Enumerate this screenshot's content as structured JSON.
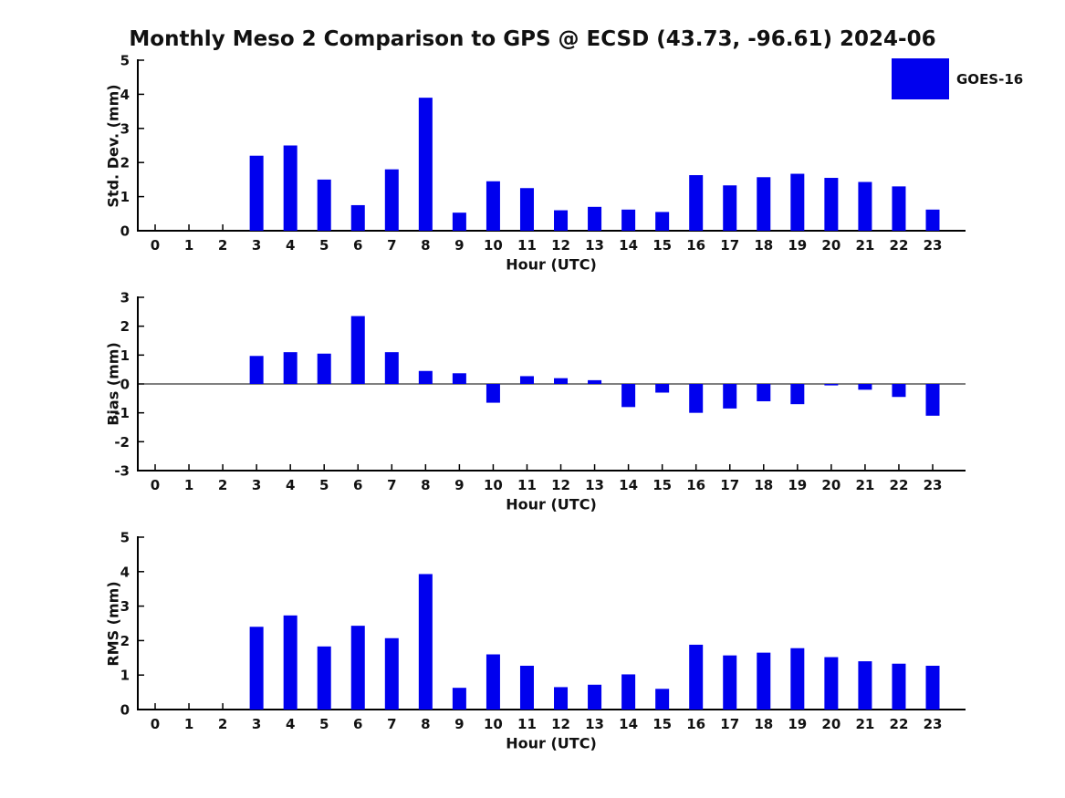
{
  "page": {
    "title": "Monthly Meso 2 Comparison to GPS @ ECSD (43.73, -96.61) 2024-06"
  },
  "legend": {
    "label": "GOES-16",
    "color": "#0000ee",
    "position": "top-right"
  },
  "colors": {
    "bar": "#0000ee",
    "axis": "#000000",
    "text": "#111111"
  },
  "chart_data": [
    {
      "type": "bar",
      "series_name": "GOES-16",
      "ylabel": "Std. Dev. (mm)",
      "xlabel": "Hour (UTC)",
      "categories": [
        0,
        1,
        2,
        3,
        4,
        5,
        6,
        7,
        8,
        9,
        10,
        11,
        12,
        13,
        14,
        15,
        16,
        17,
        18,
        19,
        20,
        21,
        22,
        23
      ],
      "values": [
        0,
        0,
        0,
        2.2,
        2.5,
        1.5,
        0.75,
        1.8,
        3.9,
        0.53,
        1.45,
        1.25,
        0.6,
        0.7,
        0.62,
        0.55,
        1.63,
        1.33,
        1.57,
        1.67,
        1.55,
        1.43,
        1.3,
        0.62
      ],
      "ylim": [
        0,
        5
      ],
      "yticks": [
        0,
        1,
        2,
        3,
        4,
        5
      ],
      "grid": false,
      "zero_line": false
    },
    {
      "type": "bar",
      "series_name": "GOES-16",
      "ylabel": "Bias (mm)",
      "xlabel": "Hour (UTC)",
      "categories": [
        0,
        1,
        2,
        3,
        4,
        5,
        6,
        7,
        8,
        9,
        10,
        11,
        12,
        13,
        14,
        15,
        16,
        17,
        18,
        19,
        20,
        21,
        22,
        23
      ],
      "values": [
        0,
        0,
        0,
        0.97,
        1.1,
        1.05,
        2.35,
        1.1,
        0.45,
        0.37,
        -0.65,
        0.27,
        0.2,
        0.13,
        -0.8,
        -0.3,
        -1.0,
        -0.85,
        -0.6,
        -0.7,
        -0.05,
        -0.2,
        -0.45,
        -1.1
      ],
      "ylim": [
        -3,
        3
      ],
      "yticks": [
        -3,
        -2,
        -1,
        0,
        1,
        2,
        3
      ],
      "grid": false,
      "zero_line": true
    },
    {
      "type": "bar",
      "series_name": "GOES-16",
      "ylabel": "RMS (mm)",
      "xlabel": "Hour (UTC)",
      "categories": [
        0,
        1,
        2,
        3,
        4,
        5,
        6,
        7,
        8,
        9,
        10,
        11,
        12,
        13,
        14,
        15,
        16,
        17,
        18,
        19,
        20,
        21,
        22,
        23
      ],
      "values": [
        0,
        0,
        0,
        2.4,
        2.73,
        1.83,
        2.43,
        2.07,
        3.93,
        0.63,
        1.6,
        1.27,
        0.65,
        0.72,
        1.02,
        0.6,
        1.88,
        1.57,
        1.65,
        1.78,
        1.52,
        1.4,
        1.33,
        1.27
      ],
      "ylim": [
        0,
        5
      ],
      "yticks": [
        0,
        1,
        2,
        3,
        4,
        5
      ],
      "grid": false,
      "zero_line": false
    }
  ]
}
